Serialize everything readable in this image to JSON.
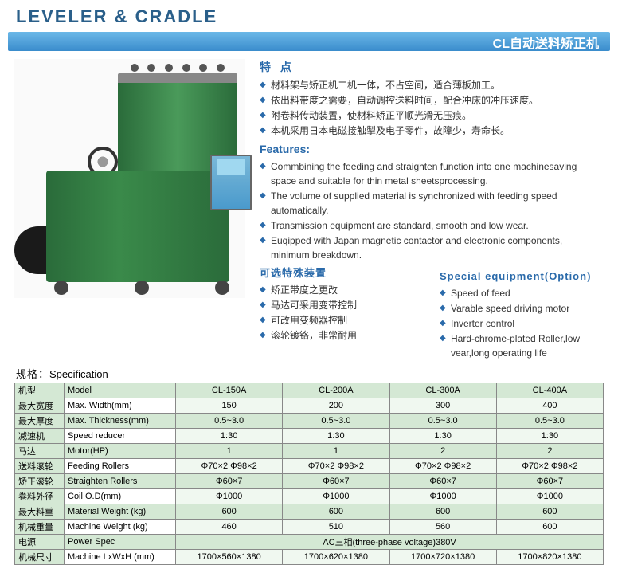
{
  "header": {
    "title_en": "LEVELER & CRADLE",
    "title_cn": "CL自动送料矫正机"
  },
  "colors": {
    "heading_blue": "#2a6aaa",
    "bar_gradient_top": "#6bb8e8",
    "bar_gradient_bottom": "#3a8ccc",
    "machine_green": "#3a8a4a",
    "table_even_bg": "#d4e8d4",
    "border": "#888888"
  },
  "features": {
    "heading_cn": "特  点",
    "heading_en": "Features:",
    "cn_list": [
      "材料架与矫正机二机一体，不占空间，适合薄板加工。",
      "依出料带度之需要，自动调控送料时间，配合冲床的冲压速度。",
      "附卷料传动装置，使材料矫正平顺光滑无压痕。",
      "本机采用日本电磁接触掣及电子零件，故障少，寿命长。"
    ],
    "en_list": [
      "Commbining the feeding and straighten function into one machinesaving space and suitable for thin metal sheetsprocessing.",
      "The volume of supplied material is synchronized with feeding speed automatically.",
      "Transmission equipment are standard, smooth and low wear.",
      "Euqipped with Japan magnetic contactor and electronic components, minimum breakdown."
    ]
  },
  "options": {
    "heading_cn": "可选特殊装置",
    "heading_en": "Special equipment(Option)",
    "cn_list": [
      "矫正带度之更改",
      "马达可采用变带控制",
      "可改用变频器控制",
      "滚轮镀铬，非常耐用"
    ],
    "en_list": [
      "Speed of feed",
      "Varable speed driving motor",
      "Inverter control",
      "Hard-chrome-plated Roller,low vear,long operating life"
    ]
  },
  "spec": {
    "heading_cn": "规格：",
    "heading_en": "Specification",
    "rows": [
      {
        "cn": "机型",
        "en": "Model",
        "vals": [
          "CL-150A",
          "CL-200A",
          "CL-300A",
          "CL-400A"
        ]
      },
      {
        "cn": "最大宽度",
        "en": "Max. Width(mm)",
        "vals": [
          "150",
          "200",
          "300",
          "400"
        ]
      },
      {
        "cn": "最大厚度",
        "en": "Max. Thickness(mm)",
        "vals": [
          "0.5~3.0",
          "0.5~3.0",
          "0.5~3.0",
          "0.5~3.0"
        ]
      },
      {
        "cn": "减速机",
        "en": "Speed reducer",
        "vals": [
          "1:30",
          "1:30",
          "1:30",
          "1:30"
        ]
      },
      {
        "cn": "马达",
        "en": "Motor(HP)",
        "vals": [
          "1",
          "1",
          "2",
          "2"
        ]
      },
      {
        "cn": "送料滚轮",
        "en": "Feeding Rollers",
        "vals": [
          "Φ70×2   Φ98×2",
          "Φ70×2   Φ98×2",
          "Φ70×2   Φ98×2",
          "Φ70×2   Φ98×2"
        ]
      },
      {
        "cn": "矫正滚轮",
        "en": "Straighten Rollers",
        "vals": [
          "Φ60×7",
          "Φ60×7",
          "Φ60×7",
          "Φ60×7"
        ]
      },
      {
        "cn": "卷料外径",
        "en": "Coil O.D(mm)",
        "vals": [
          "Φ1000",
          "Φ1000",
          "Φ1000",
          "Φ1000"
        ]
      },
      {
        "cn": "最大料重",
        "en": "Material  Weight (kg)",
        "vals": [
          "600",
          "600",
          "600",
          "600"
        ]
      },
      {
        "cn": "机械重量",
        "en": "Machine Weight (kg)",
        "vals": [
          "460",
          "510",
          "560",
          "600"
        ]
      },
      {
        "cn": "电源",
        "en": "Power Spec",
        "span": "AC三相(three-phase voltage)380V"
      },
      {
        "cn": "机械尺寸",
        "en": "Machine LxWxH (mm)",
        "vals": [
          "1700×560×1380",
          "1700×620×1380",
          "1700×720×1380",
          "1700×820×1380"
        ]
      }
    ]
  }
}
